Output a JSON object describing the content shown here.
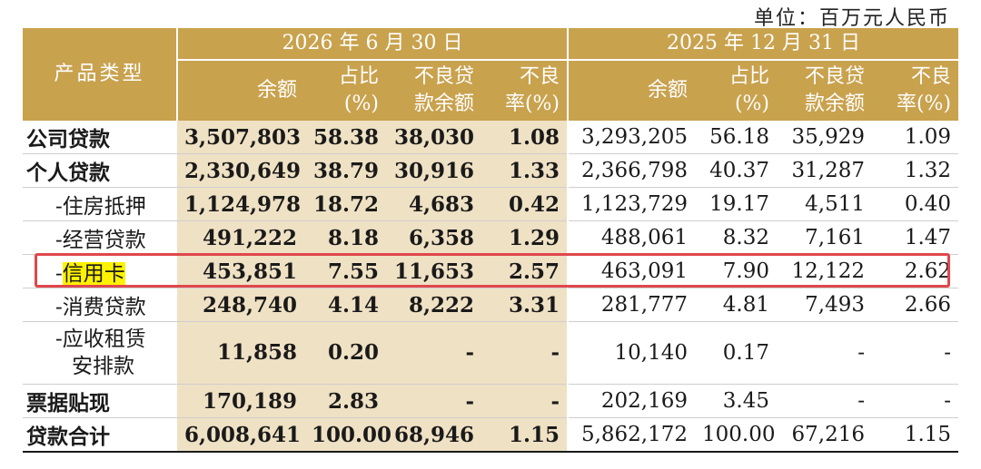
{
  "unit": "单位：百万元人民币",
  "header": {
    "product_type": "产品类型",
    "period_current": "2026 年 6 月 30 日",
    "period_prior": "2025 年 12 月 31 日",
    "col_balance": "余额",
    "col_share": [
      "占比",
      "(%)"
    ],
    "col_npl_balance": [
      "不良贷",
      "款余额"
    ],
    "col_npl_ratio": [
      "不良",
      "率(%)"
    ]
  },
  "rows": [
    {
      "name": "公司贷款",
      "sub": false,
      "cur": [
        "3,507,803",
        "58.38",
        "38,030",
        "1.08"
      ],
      "prev": [
        "3,293,205",
        "56.18",
        "35,929",
        "1.09"
      ]
    },
    {
      "name": "个人贷款",
      "sub": false,
      "cur": [
        "2,330,649",
        "38.79",
        "30,916",
        "1.33"
      ],
      "prev": [
        "2,366,798",
        "40.37",
        "31,287",
        "1.32"
      ]
    },
    {
      "name": "-住房抵押",
      "sub": true,
      "cur": [
        "1,124,978",
        "18.72",
        "4,683",
        "0.42"
      ],
      "prev": [
        "1,123,729",
        "19.17",
        "4,511",
        "0.40"
      ]
    },
    {
      "name": "-经营贷款",
      "sub": true,
      "cur": [
        "491,222",
        "8.18",
        "6,358",
        "1.29"
      ],
      "prev": [
        "488,061",
        "8.32",
        "7,161",
        "1.47"
      ]
    },
    {
      "name_prefix": "-",
      "name_highlight": "信用卡",
      "sub": true,
      "cur": [
        "453,851",
        "7.55",
        "11,653",
        "2.57"
      ],
      "prev": [
        "463,091",
        "7.90",
        "12,122",
        "2.62"
      ]
    },
    {
      "name": "-消费贷款",
      "sub": true,
      "cur": [
        "248,740",
        "4.14",
        "8,222",
        "3.31"
      ],
      "prev": [
        "281,777",
        "4.81",
        "7,493",
        "2.66"
      ]
    },
    {
      "name_lines": [
        "-应收租赁",
        "安排款"
      ],
      "sub": true,
      "cur": [
        "11,858",
        "0.20",
        "-",
        "-"
      ],
      "prev": [
        "10,140",
        "0.17",
        "-",
        "-"
      ]
    },
    {
      "name": "票据贴现",
      "sub": false,
      "cur": [
        "170,189",
        "2.83",
        "-",
        "-"
      ],
      "prev": [
        "202,169",
        "3.45",
        "-",
        "-"
      ]
    },
    {
      "name": "贷款合计",
      "sub": false,
      "cur": [
        "6,008,641",
        "100.00",
        "68,946",
        "1.15"
      ],
      "prev": [
        "5,862,172",
        "100.00",
        "67,216",
        "1.15"
      ]
    }
  ],
  "colors": {
    "header_gold": "#c9a24e",
    "current_fill": "#efe1c4",
    "highlight_box": "#e0474c",
    "highlight_text": "#fff200"
  }
}
